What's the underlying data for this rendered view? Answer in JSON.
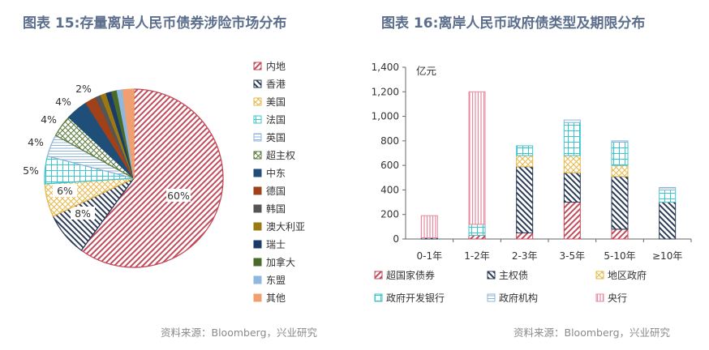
{
  "left": {
    "title": "图表 15:存量离岸人民币债券涉险市场分布",
    "source": "资料来源：Bloomberg，兴业研究",
    "chart_data": {
      "type": "pie",
      "categories": [
        "内地",
        "香港",
        "美国",
        "法国",
        "英国",
        "超主权",
        "中东",
        "德国",
        "韩国",
        "澳大利亚",
        "瑞士",
        "加拿大",
        "东盟",
        "其他"
      ],
      "values": [
        60,
        8,
        6,
        5,
        4,
        4,
        4,
        2,
        1,
        1,
        1,
        1,
        1,
        2
      ],
      "slice_labels": [
        "60%",
        "8%",
        "6%",
        "5%",
        "4%",
        "4%",
        "4%",
        "2%",
        "",
        "",
        "",
        "",
        "",
        ""
      ],
      "legend_position": "right",
      "colors": [
        "#c44a5a",
        "#2b3a55",
        "#e6b84a",
        "#3ec6cf",
        "#8fb4d8",
        "#5a7a3a",
        "#1f4e79",
        "#a0411a",
        "#555555",
        "#9a7a10",
        "#1a3a6a",
        "#4a6a2a",
        "#8fb8e0",
        "#f0a070"
      ]
    }
  },
  "right": {
    "title": "图表 16:离岸人民币政府债类型及期限分布",
    "source": "资料来源：Bloomberg，兴业研究",
    "chart_data": {
      "type": "bar",
      "stacked": true,
      "categories": [
        "0-1年",
        "1-2年",
        "2-3年",
        "3-5年",
        "5-10年",
        "≥10年"
      ],
      "ylabel": "亿元",
      "ylim": [
        0,
        1400
      ],
      "yticks": [
        "0",
        "200",
        "400",
        "600",
        "800",
        "1,000",
        "1,200",
        "1,400"
      ],
      "grid": false,
      "legend_position": "bottom",
      "series": [
        {
          "name": "超国家债券",
          "color": "#c44a5a",
          "values": [
            0,
            30,
            50,
            300,
            80,
            0
          ]
        },
        {
          "name": "主权债",
          "color": "#2b3a55",
          "values": [
            10,
            0,
            540,
            240,
            430,
            300
          ]
        },
        {
          "name": "地区政府",
          "color": "#e6b84a",
          "values": [
            0,
            0,
            90,
            140,
            90,
            0
          ]
        },
        {
          "name": "政府开发银行",
          "color": "#3ec6cf",
          "values": [
            0,
            90,
            80,
            270,
            190,
            100
          ]
        },
        {
          "name": "政府机构",
          "color": "#8fb4d8",
          "values": [
            0,
            0,
            0,
            20,
            10,
            20
          ]
        },
        {
          "name": "央行",
          "color": "#e88aa0",
          "values": [
            180,
            1080,
            0,
            0,
            0,
            0
          ]
        }
      ]
    }
  }
}
